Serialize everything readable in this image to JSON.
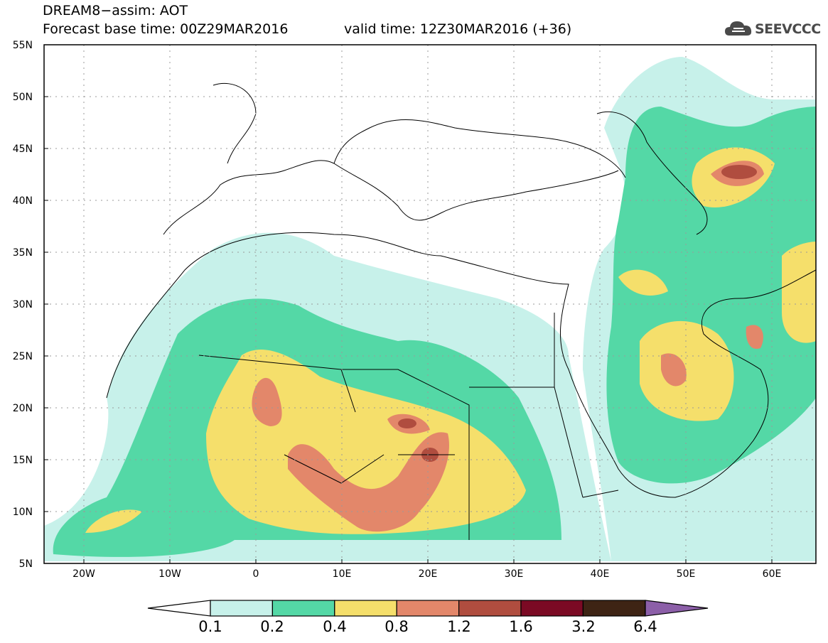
{
  "header": {
    "line1": "DREAM8−assim: AOT",
    "line2": "Forecast base time: 00Z29MAR2016",
    "valid": "valid time: 12Z30MAR2016 (+36)"
  },
  "logo": {
    "text": "SEEVCCC",
    "icon": "cloud-icon",
    "color": "#4a4a4a"
  },
  "map": {
    "lon_range": [
      -25,
      65
    ],
    "lat_range": [
      5,
      55
    ],
    "lon_ticks": [
      "20W",
      "10W",
      "0",
      "10E",
      "20E",
      "30E",
      "40E",
      "50E",
      "60E"
    ],
    "lat_ticks": [
      "55N",
      "50N",
      "45N",
      "40N",
      "35N",
      "30N",
      "25N",
      "20N",
      "15N",
      "10N",
      "5N"
    ]
  },
  "colorbar": {
    "labels": [
      "0.1",
      "0.2",
      "0.4",
      "0.8",
      "1.2",
      "1.6",
      "3.2",
      "6.4"
    ],
    "colors": [
      "#c7f1ea",
      "#54d8a6",
      "#f5df6b",
      "#e3876a",
      "#b04d3f",
      "#7b0a24",
      "#3e2414",
      "#8c5fa8"
    ]
  }
}
